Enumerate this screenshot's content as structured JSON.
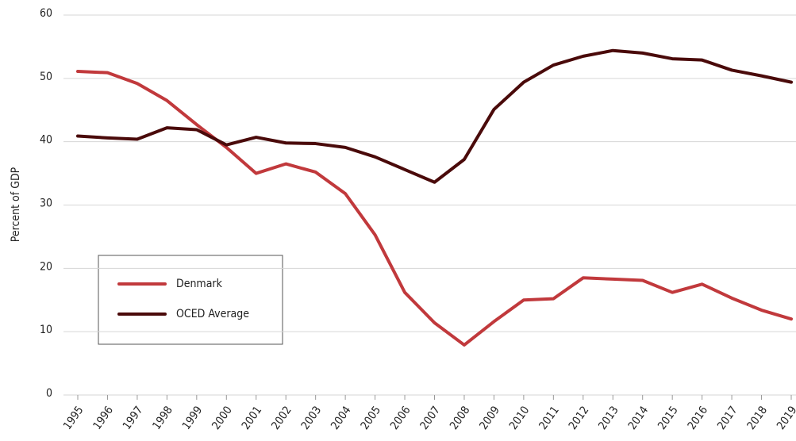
{
  "chart_data": {
    "type": "line",
    "ylabel": "Percent of GDP",
    "categories": [
      "1995",
      "1996",
      "1997",
      "1998",
      "1999",
      "2000",
      "2001",
      "2002",
      "2003",
      "2004",
      "2005",
      "2006",
      "2007",
      "2008",
      "2009",
      "2010",
      "2011",
      "2012",
      "2013",
      "2014",
      "2015",
      "2016",
      "2017",
      "2018",
      "2019"
    ],
    "series": [
      {
        "name": "Denmark",
        "color": "#c1393c",
        "values": [
          51.1,
          50.9,
          49.2,
          46.5,
          42.7,
          39.1,
          35.0,
          36.5,
          35.2,
          31.8,
          25.3,
          16.2,
          11.4,
          7.9,
          11.6,
          15.0,
          15.2,
          18.5,
          18.3,
          18.1,
          16.2,
          17.5,
          15.3,
          13.4,
          12.0
        ]
      },
      {
        "name": "OCED Average",
        "color": "#4a0a0a",
        "values": [
          40.9,
          40.6,
          40.4,
          42.2,
          41.9,
          39.5,
          40.7,
          39.8,
          39.7,
          39.1,
          37.6,
          35.6,
          33.6,
          37.2,
          45.1,
          49.4,
          52.1,
          53.5,
          54.4,
          54.0,
          53.1,
          52.9,
          51.3,
          50.4,
          49.4
        ]
      }
    ],
    "ylim": [
      0,
      60
    ],
    "yticks": [
      0,
      10,
      20,
      30,
      40,
      50,
      60
    ],
    "grid": true
  }
}
